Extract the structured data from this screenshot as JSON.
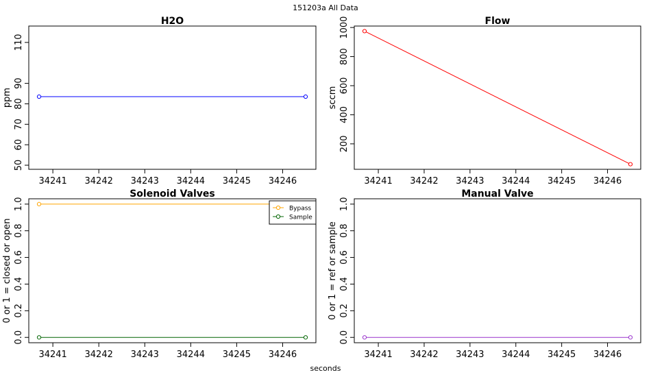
{
  "figure": {
    "supertitle": "151203a   All Data",
    "xlabel": "seconds"
  },
  "chart_data": [
    {
      "type": "line",
      "title": "H2O",
      "xlabel": "",
      "ylabel": "ppm",
      "xlim": [
        34240.7,
        34246.5
      ],
      "ylim": [
        48,
        118
      ],
      "xticks": [
        34241,
        34242,
        34243,
        34244,
        34245,
        34246
      ],
      "yticks": [
        50,
        60,
        70,
        80,
        90,
        110
      ],
      "grid": false,
      "series": [
        {
          "x": [
            34240.7,
            34246.5
          ],
          "y": [
            83.5,
            83.5
          ],
          "color": "#0000ff"
        }
      ]
    },
    {
      "type": "line",
      "title": "Flow",
      "xlabel": "",
      "ylabel": "sccm",
      "xlim": [
        34240.7,
        34246.5
      ],
      "ylim": [
        25,
        1010
      ],
      "xticks": [
        34241,
        34242,
        34243,
        34244,
        34245,
        34246
      ],
      "yticks": [
        200,
        400,
        600,
        800,
        1000
      ],
      "grid": false,
      "series": [
        {
          "x": [
            34240.7,
            34246.5
          ],
          "y": [
            975,
            60
          ],
          "color": "#ff0000"
        }
      ]
    },
    {
      "type": "line",
      "title": "Solenoid Valves",
      "xlabel": "",
      "ylabel": "0 or 1 = closed or open",
      "xlim": [
        34240.7,
        34246.5
      ],
      "ylim": [
        -0.04,
        1.04
      ],
      "xticks": [
        34241,
        34242,
        34243,
        34244,
        34245,
        34246
      ],
      "yticks": [
        0.0,
        0.2,
        0.4,
        0.6,
        0.8,
        1.0
      ],
      "yticklabels": [
        "0.0",
        "0.2",
        "0.4",
        "0.6",
        "0.8",
        "1.0"
      ],
      "grid": false,
      "legend": "top-right",
      "series": [
        {
          "name": "Bypass",
          "x": [
            34240.7,
            34246.5
          ],
          "y": [
            1,
            1
          ],
          "color": "#ffa500"
        },
        {
          "name": "Sample",
          "x": [
            34240.7,
            34246.5
          ],
          "y": [
            0,
            0
          ],
          "color": "#006400"
        }
      ]
    },
    {
      "type": "line",
      "title": "Manual Valve",
      "xlabel": "",
      "ylabel": "0 or 1 = ref or sample",
      "xlim": [
        34240.7,
        34246.5
      ],
      "ylim": [
        -0.04,
        1.04
      ],
      "xticks": [
        34241,
        34242,
        34243,
        34244,
        34245,
        34246
      ],
      "yticks": [
        0.0,
        0.2,
        0.4,
        0.6,
        0.8,
        1.0
      ],
      "yticklabels": [
        "0.0",
        "0.2",
        "0.4",
        "0.6",
        "0.8",
        "1.0"
      ],
      "grid": false,
      "series": [
        {
          "x": [
            34240.7,
            34246.5
          ],
          "y": [
            0,
            0
          ],
          "color": "#9932cc"
        }
      ]
    }
  ]
}
